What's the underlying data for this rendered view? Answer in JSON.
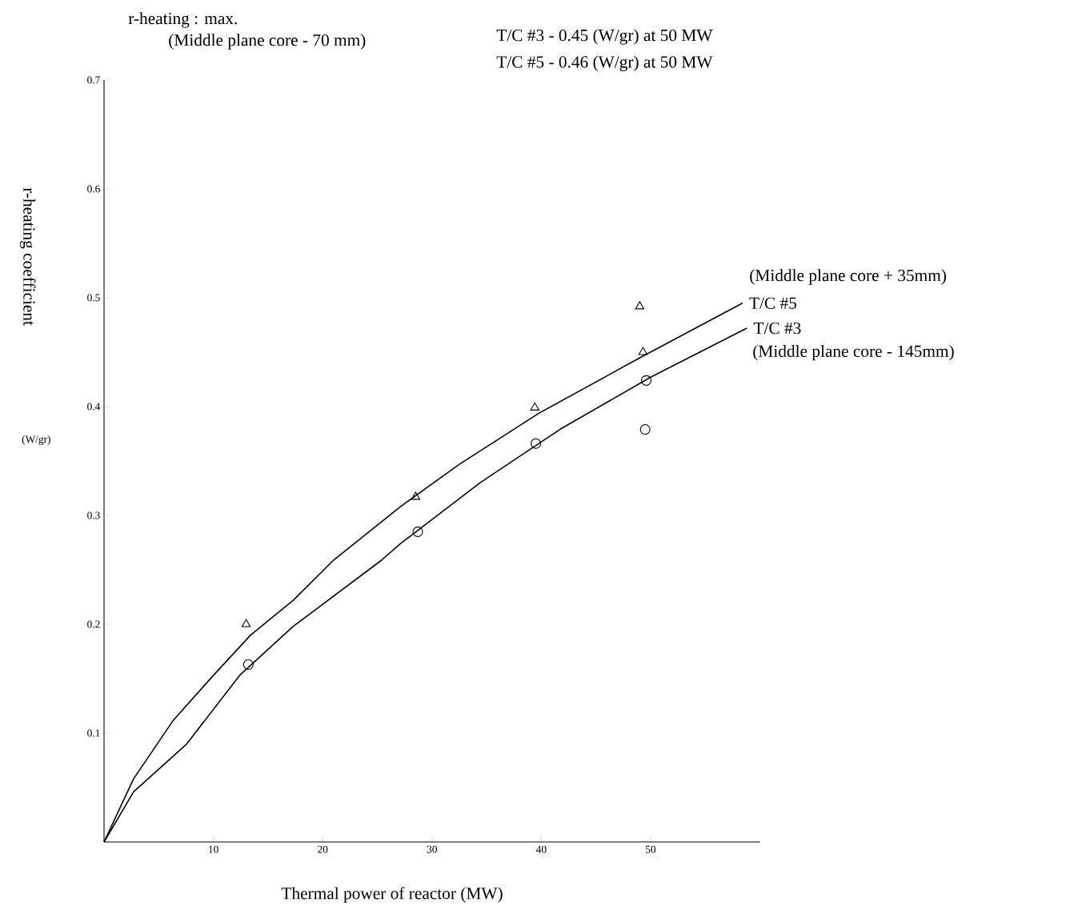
{
  "chart_data": {
    "type": "line",
    "title": "r-heating :  max.",
    "xlabel": "Thermal power of reactor (MW)",
    "ylabel": "r-heating coefficient",
    "annotations": [
      "(W/gr)",
      "(Middle plane core - 70 mm)",
      "T/C #3 - 0.45 (W/gr) at 50 MW",
      "T/C #5 - 0.46 (W/gr) at 50 MW",
      "(Middle plane core + 35mm)",
      "(Middle plane core - 145mm)"
    ],
    "xlim": [
      0,
      60
    ],
    "ylim": [
      0,
      0.7
    ],
    "xticks": [
      10,
      20,
      30,
      40,
      50
    ],
    "yticks": [
      0.1,
      0.2,
      0.3,
      0.4,
      0.5,
      0.6,
      0.7
    ],
    "grid": false,
    "legend": false,
    "series": [
      {
        "name": "T/C #5",
        "color": "#000000",
        "marker": "none",
        "x": [
          0,
          2.7,
          6.35,
          10.0,
          13.4,
          17.3,
          21.0,
          27.1,
          32.5,
          39.8,
          49.05,
          58.4
        ],
        "values": [
          0,
          0.058,
          0.112,
          0.153,
          0.19,
          0.222,
          0.259,
          0.308,
          0.347,
          0.394,
          0.445,
          0.495
        ]
      },
      {
        "name": "T/C #3",
        "color": "#000000",
        "marker": "none",
        "x": [
          0,
          2.7,
          7.56,
          12.4,
          17.3,
          25.4,
          27.1,
          34.4,
          41.7,
          50.0,
          58.8
        ],
        "values": [
          0,
          0.046,
          0.09,
          0.153,
          0.198,
          0.259,
          0.274,
          0.33,
          0.379,
          0.427,
          0.472
        ]
      },
      {
        "type": "scatter",
        "color": "#000000",
        "marker": "triangle",
        "x": [
          13.0,
          28.5,
          39.4,
          49.3,
          49.0
        ],
        "values": [
          0.2,
          0.317,
          0.399,
          0.45,
          0.492
        ]
      },
      {
        "type": "scatter",
        "color": "#000000",
        "marker": "circle",
        "x": [
          13.2,
          28.7,
          39.5,
          49.6,
          49.5
        ],
        "values": [
          0.163,
          0.285,
          0.366,
          0.424,
          0.379
        ]
      }
    ]
  }
}
